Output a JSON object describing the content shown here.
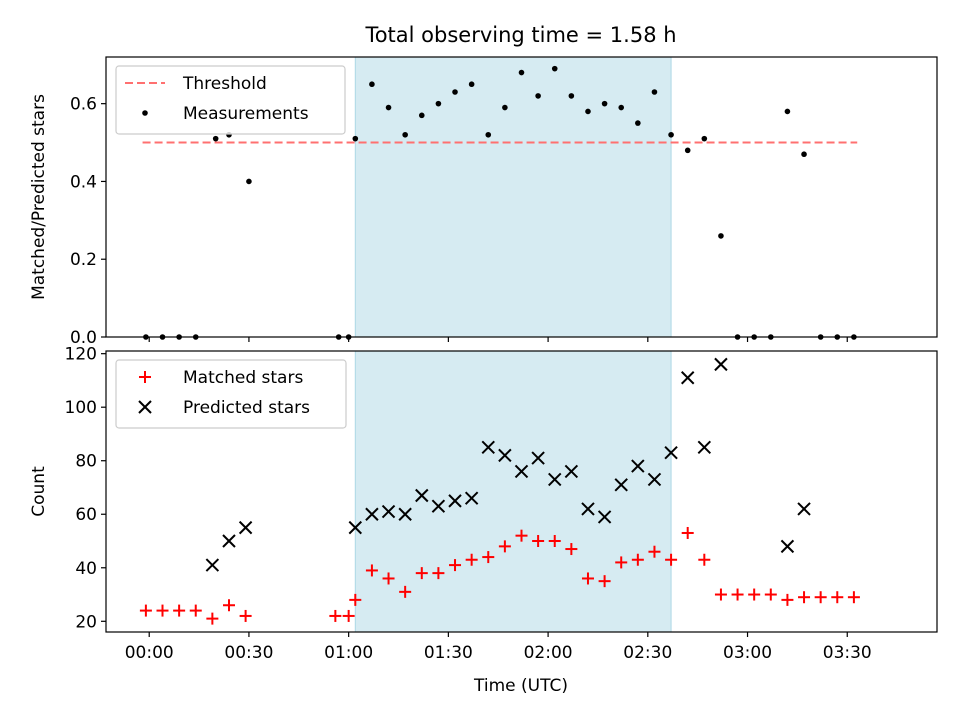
{
  "chart_data": {
    "title": "Total observing time = 1.58 h",
    "xlabel": "Time (UTC)",
    "xlim": [
      "23:47",
      "03:57"
    ],
    "x_ticks": [
      "00:00",
      "00:30",
      "01:00",
      "01:30",
      "02:00",
      "02:30",
      "03:00",
      "03:30"
    ],
    "x_tick_values": [
      "00:00",
      "00:30",
      "01:00",
      "01:30",
      "02:00",
      "02:30",
      "03:00",
      "03:30"
    ],
    "shaded_interval": {
      "start": "01:02",
      "end": "02:37",
      "color": "#add8e6"
    },
    "panels": [
      {
        "type": "scatter",
        "ylabel": "Matched/Predicted stars",
        "ylim": [
          0,
          0.72
        ],
        "y_ticks": [
          "0.0",
          "0.2",
          "0.4",
          "0.6"
        ],
        "y_tick_values": [
          0,
          0.2,
          0.4,
          0.6
        ],
        "legend_position": "top-left",
        "threshold": {
          "label": "Threshold",
          "value": 0.5,
          "x_range": [
            "23:58",
            "03:33"
          ],
          "color": "#ff7070"
        },
        "series": [
          {
            "name": "Measurements",
            "marker": "dot",
            "color": "#000000",
            "points": [
              [
                "23:59",
                0.0
              ],
              [
                "00:04",
                0.0
              ],
              [
                "00:09",
                0.0
              ],
              [
                "00:14",
                0.0
              ],
              [
                "00:20",
                0.51
              ],
              [
                "00:24",
                0.52
              ],
              [
                "00:30",
                0.4
              ],
              [
                "00:57",
                0.0
              ],
              [
                "01:00",
                0.0
              ],
              [
                "01:02",
                0.51
              ],
              [
                "01:07",
                0.65
              ],
              [
                "01:12",
                0.59
              ],
              [
                "01:17",
                0.52
              ],
              [
                "01:22",
                0.57
              ],
              [
                "01:27",
                0.6
              ],
              [
                "01:32",
                0.63
              ],
              [
                "01:37",
                0.65
              ],
              [
                "01:42",
                0.52
              ],
              [
                "01:47",
                0.59
              ],
              [
                "01:52",
                0.68
              ],
              [
                "01:57",
                0.62
              ],
              [
                "02:02",
                0.69
              ],
              [
                "02:07",
                0.62
              ],
              [
                "02:12",
                0.58
              ],
              [
                "02:17",
                0.6
              ],
              [
                "02:22",
                0.59
              ],
              [
                "02:27",
                0.55
              ],
              [
                "02:32",
                0.63
              ],
              [
                "02:37",
                0.52
              ],
              [
                "02:42",
                0.48
              ],
              [
                "02:47",
                0.51
              ],
              [
                "02:52",
                0.26
              ],
              [
                "02:57",
                0.0
              ],
              [
                "03:02",
                0.0
              ],
              [
                "03:07",
                0.0
              ],
              [
                "03:12",
                0.58
              ],
              [
                "03:17",
                0.47
              ],
              [
                "03:22",
                0.0
              ],
              [
                "03:27",
                0.0
              ],
              [
                "03:32",
                0.0
              ]
            ]
          }
        ]
      },
      {
        "type": "scatter",
        "ylabel": "Count",
        "ylim": [
          16,
          121
        ],
        "y_ticks": [
          "20",
          "40",
          "60",
          "80",
          "100",
          "120"
        ],
        "y_tick_values": [
          20,
          40,
          60,
          80,
          100,
          120
        ],
        "legend_position": "top-left",
        "series": [
          {
            "name": "Matched stars",
            "marker": "plus",
            "color": "#ff0000",
            "points": [
              [
                "23:59",
                24
              ],
              [
                "00:04",
                24
              ],
              [
                "00:09",
                24
              ],
              [
                "00:14",
                24
              ],
              [
                "00:19",
                21
              ],
              [
                "00:24",
                26
              ],
              [
                "00:29",
                22
              ],
              [
                "00:56",
                22
              ],
              [
                "01:00",
                22
              ],
              [
                "01:02",
                28
              ],
              [
                "01:07",
                39
              ],
              [
                "01:12",
                36
              ],
              [
                "01:17",
                31
              ],
              [
                "01:22",
                38
              ],
              [
                "01:27",
                38
              ],
              [
                "01:32",
                41
              ],
              [
                "01:37",
                43
              ],
              [
                "01:42",
                44
              ],
              [
                "01:47",
                48
              ],
              [
                "01:52",
                52
              ],
              [
                "01:57",
                50
              ],
              [
                "02:02",
                50
              ],
              [
                "02:07",
                47
              ],
              [
                "02:12",
                36
              ],
              [
                "02:17",
                35
              ],
              [
                "02:22",
                42
              ],
              [
                "02:27",
                43
              ],
              [
                "02:32",
                46
              ],
              [
                "02:37",
                43
              ],
              [
                "02:42",
                53
              ],
              [
                "02:47",
                43
              ],
              [
                "02:52",
                30
              ],
              [
                "02:57",
                30
              ],
              [
                "03:02",
                30
              ],
              [
                "03:07",
                30
              ],
              [
                "03:12",
                28
              ],
              [
                "03:17",
                29
              ],
              [
                "03:22",
                29
              ],
              [
                "03:27",
                29
              ],
              [
                "03:32",
                29
              ]
            ]
          },
          {
            "name": "Predicted stars",
            "marker": "x",
            "color": "#000000",
            "points": [
              [
                "00:19",
                41
              ],
              [
                "00:24",
                50
              ],
              [
                "00:29",
                55
              ],
              [
                "01:02",
                55
              ],
              [
                "01:07",
                60
              ],
              [
                "01:12",
                61
              ],
              [
                "01:17",
                60
              ],
              [
                "01:22",
                67
              ],
              [
                "01:27",
                63
              ],
              [
                "01:32",
                65
              ],
              [
                "01:37",
                66
              ],
              [
                "01:42",
                85
              ],
              [
                "01:47",
                82
              ],
              [
                "01:52",
                76
              ],
              [
                "01:57",
                81
              ],
              [
                "02:02",
                73
              ],
              [
                "02:07",
                76
              ],
              [
                "02:12",
                62
              ],
              [
                "02:17",
                59
              ],
              [
                "02:22",
                71
              ],
              [
                "02:27",
                78
              ],
              [
                "02:32",
                73
              ],
              [
                "02:37",
                83
              ],
              [
                "02:42",
                111
              ],
              [
                "02:47",
                85
              ],
              [
                "02:52",
                116
              ],
              [
                "03:12",
                48
              ],
              [
                "03:17",
                62
              ]
            ]
          }
        ]
      }
    ]
  }
}
